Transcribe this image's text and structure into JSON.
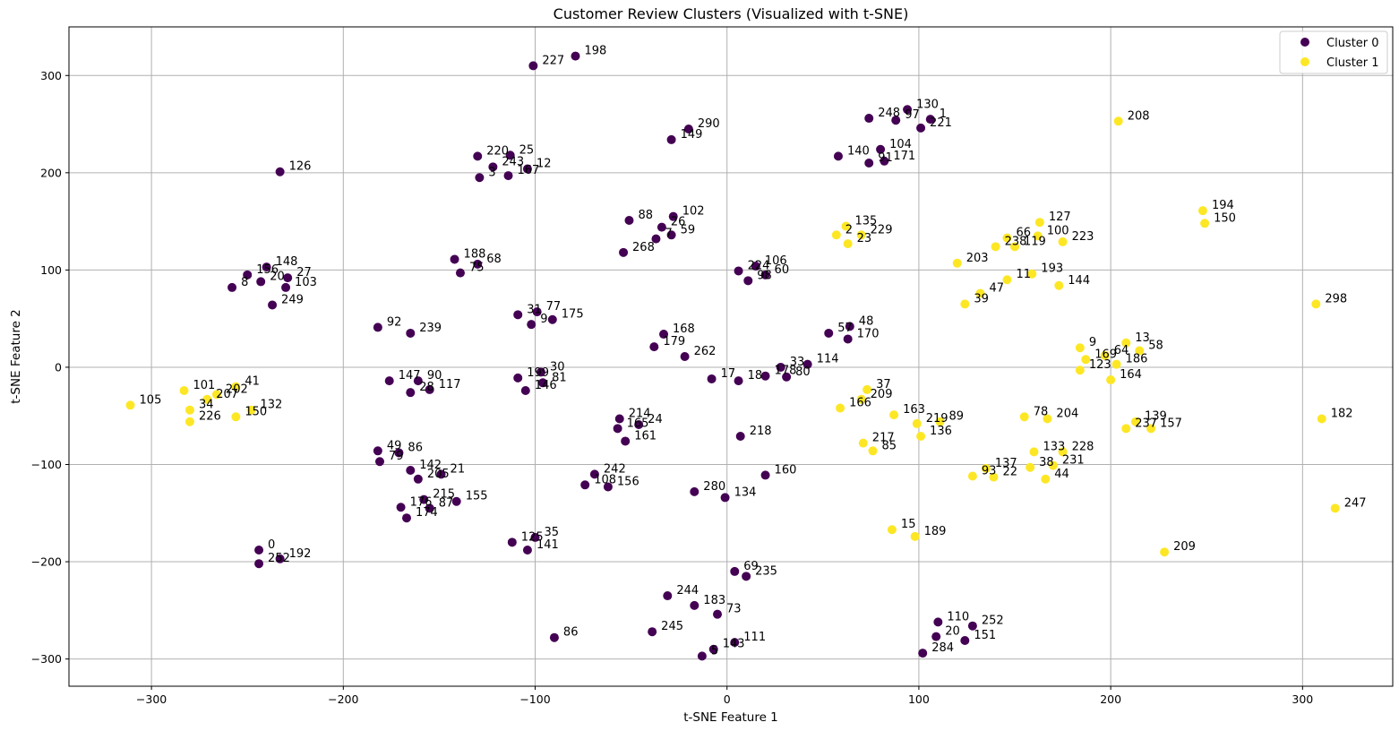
{
  "chart_data": {
    "type": "scatter",
    "title": "Customer Review Clusters (Visualized with t-SNE)",
    "xlabel": "t-SNE Feature 1",
    "ylabel": "t-SNE Feature 2",
    "xlim": [
      -343,
      347
    ],
    "ylim": [
      -328,
      350
    ],
    "xticks": [
      -300,
      -200,
      -100,
      0,
      100,
      200,
      300
    ],
    "yticks": [
      -300,
      -200,
      -100,
      0,
      100,
      200,
      300
    ],
    "grid": true,
    "legend_position": "top-right",
    "series": [
      {
        "name": "Cluster 0",
        "color": "#440154",
        "points": [
          {
            "x": -79,
            "y": 320,
            "label": "198"
          },
          {
            "x": -101,
            "y": 310,
            "label": "227"
          },
          {
            "x": 94,
            "y": 265,
            "label": "130"
          },
          {
            "x": 106,
            "y": 255,
            "label": "1"
          },
          {
            "x": 74,
            "y": 256,
            "label": "248"
          },
          {
            "x": 88,
            "y": 254,
            "label": "97"
          },
          {
            "x": 101,
            "y": 246,
            "label": "221"
          },
          {
            "x": -20,
            "y": 245,
            "label": "290"
          },
          {
            "x": -29,
            "y": 234,
            "label": "149"
          },
          {
            "x": 80,
            "y": 224,
            "label": "104"
          },
          {
            "x": 58,
            "y": 217,
            "label": "140"
          },
          {
            "x": 82,
            "y": 212,
            "label": "171"
          },
          {
            "x": 74,
            "y": 210,
            "label": "91"
          },
          {
            "x": -233,
            "y": 201,
            "label": "126"
          },
          {
            "x": -130,
            "y": 217,
            "label": "220"
          },
          {
            "x": -113,
            "y": 218,
            "label": "25"
          },
          {
            "x": -122,
            "y": 206,
            "label": "243"
          },
          {
            "x": -104,
            "y": 204,
            "label": "12"
          },
          {
            "x": -129,
            "y": 195,
            "label": "3"
          },
          {
            "x": -114,
            "y": 197,
            "label": "167"
          },
          {
            "x": -51,
            "y": 151,
            "label": "88"
          },
          {
            "x": -28,
            "y": 155,
            "label": "102"
          },
          {
            "x": -34,
            "y": 144,
            "label": "26"
          },
          {
            "x": -29,
            "y": 136,
            "label": "59"
          },
          {
            "x": -37,
            "y": 132,
            "label": "7"
          },
          {
            "x": -54,
            "y": 118,
            "label": "268"
          },
          {
            "x": -142,
            "y": 111,
            "label": "188"
          },
          {
            "x": -130,
            "y": 106,
            "label": "68"
          },
          {
            "x": -139,
            "y": 97,
            "label": "75"
          },
          {
            "x": 15,
            "y": 104,
            "label": "106"
          },
          {
            "x": 6,
            "y": 99,
            "label": "224"
          },
          {
            "x": 20,
            "y": 95,
            "label": "60"
          },
          {
            "x": 11,
            "y": 89,
            "label": "98"
          },
          {
            "x": -240,
            "y": 103,
            "label": "148"
          },
          {
            "x": -250,
            "y": 95,
            "label": "156"
          },
          {
            "x": -229,
            "y": 92,
            "label": "27"
          },
          {
            "x": -243,
            "y": 88,
            "label": "20"
          },
          {
            "x": -230,
            "y": 82,
            "label": "103"
          },
          {
            "x": -258,
            "y": 82,
            "label": "8"
          },
          {
            "x": -237,
            "y": 64,
            "label": "249"
          },
          {
            "x": -109,
            "y": 54,
            "label": "31"
          },
          {
            "x": -99,
            "y": 57,
            "label": "77"
          },
          {
            "x": -91,
            "y": 49,
            "label": "175"
          },
          {
            "x": -102,
            "y": 44,
            "label": "9"
          },
          {
            "x": 64,
            "y": 42,
            "label": "48"
          },
          {
            "x": 53,
            "y": 35,
            "label": "57"
          },
          {
            "x": 63,
            "y": 29,
            "label": "170"
          },
          {
            "x": -182,
            "y": 41,
            "label": "92"
          },
          {
            "x": -165,
            "y": 35,
            "label": "239"
          },
          {
            "x": -33,
            "y": 34,
            "label": "168"
          },
          {
            "x": -38,
            "y": 21,
            "label": "179"
          },
          {
            "x": -22,
            "y": 11,
            "label": "262"
          },
          {
            "x": 42,
            "y": 3,
            "label": "114"
          },
          {
            "x": 28,
            "y": 0,
            "label": "33"
          },
          {
            "x": -97,
            "y": -5,
            "label": "30"
          },
          {
            "x": -109,
            "y": -11,
            "label": "199"
          },
          {
            "x": -96,
            "y": -16,
            "label": "81"
          },
          {
            "x": -105,
            "y": -24,
            "label": "146"
          },
          {
            "x": -8,
            "y": -12,
            "label": "17"
          },
          {
            "x": 6,
            "y": -14,
            "label": "18"
          },
          {
            "x": 20,
            "y": -9,
            "label": "178"
          },
          {
            "x": 31,
            "y": -10,
            "label": "80"
          },
          {
            "x": -176,
            "y": -14,
            "label": "147"
          },
          {
            "x": -161,
            "y": -14,
            "label": "90"
          },
          {
            "x": -155,
            "y": -23,
            "label": "117"
          },
          {
            "x": -165,
            "y": -26,
            "label": "28"
          },
          {
            "x": -56,
            "y": -53,
            "label": "214"
          },
          {
            "x": -46,
            "y": -59,
            "label": "24"
          },
          {
            "x": -57,
            "y": -63,
            "label": "165"
          },
          {
            "x": -53,
            "y": -76,
            "label": "161"
          },
          {
            "x": 7,
            "y": -71,
            "label": "218"
          },
          {
            "x": -182,
            "y": -86,
            "label": "49"
          },
          {
            "x": -171,
            "y": -88,
            "label": "86"
          },
          {
            "x": -181,
            "y": -97,
            "label": "79"
          },
          {
            "x": -165,
            "y": -106,
            "label": "142"
          },
          {
            "x": -149,
            "y": -110,
            "label": "21"
          },
          {
            "x": -161,
            "y": -115,
            "label": "205"
          },
          {
            "x": -69,
            "y": -110,
            "label": "242"
          },
          {
            "x": -74,
            "y": -121,
            "label": "108"
          },
          {
            "x": -62,
            "y": -123,
            "label": "156"
          },
          {
            "x": -17,
            "y": -128,
            "label": "280"
          },
          {
            "x": -1,
            "y": -134,
            "label": "134"
          },
          {
            "x": 20,
            "y": -111,
            "label": "160"
          },
          {
            "x": -158,
            "y": -136,
            "label": "215"
          },
          {
            "x": -141,
            "y": -138,
            "label": "155"
          },
          {
            "x": -170,
            "y": -144,
            "label": "176"
          },
          {
            "x": -155,
            "y": -145,
            "label": "87"
          },
          {
            "x": -167,
            "y": -155,
            "label": "174"
          },
          {
            "x": -112,
            "y": -180,
            "label": "125"
          },
          {
            "x": -100,
            "y": -175,
            "label": "35"
          },
          {
            "x": -104,
            "y": -188,
            "label": "141"
          },
          {
            "x": -244,
            "y": -188,
            "label": "0"
          },
          {
            "x": -233,
            "y": -197,
            "label": "192"
          },
          {
            "x": -244,
            "y": -202,
            "label": "252"
          },
          {
            "x": 4,
            "y": -210,
            "label": "69"
          },
          {
            "x": 10,
            "y": -215,
            "label": "235"
          },
          {
            "x": -31,
            "y": -235,
            "label": "244"
          },
          {
            "x": -17,
            "y": -245,
            "label": "183"
          },
          {
            "x": -5,
            "y": -254,
            "label": "73"
          },
          {
            "x": -90,
            "y": -278,
            "label": "86"
          },
          {
            "x": -39,
            "y": -272,
            "label": "245"
          },
          {
            "x": 4,
            "y": -283,
            "label": "111"
          },
          {
            "x": -7,
            "y": -290,
            "label": "143"
          },
          {
            "x": -13,
            "y": -297,
            "label": "5"
          },
          {
            "x": 110,
            "y": -262,
            "label": "110"
          },
          {
            "x": 128,
            "y": -266,
            "label": "252"
          },
          {
            "x": 109,
            "y": -277,
            "label": "20"
          },
          {
            "x": 124,
            "y": -281,
            "label": "151"
          },
          {
            "x": 102,
            "y": -294,
            "label": "284"
          }
        ]
      },
      {
        "name": "Cluster 1",
        "color": "#fde725",
        "points": [
          {
            "x": 204,
            "y": 253,
            "label": "208"
          },
          {
            "x": 163,
            "y": 149,
            "label": "127"
          },
          {
            "x": 162,
            "y": 135,
            "label": "100"
          },
          {
            "x": 175,
            "y": 129,
            "label": "223"
          },
          {
            "x": 146,
            "y": 133,
            "label": "66"
          },
          {
            "x": 140,
            "y": 124,
            "label": "238"
          },
          {
            "x": 150,
            "y": 124,
            "label": "119"
          },
          {
            "x": 248,
            "y": 161,
            "label": "194"
          },
          {
            "x": 249,
            "y": 148,
            "label": "150"
          },
          {
            "x": 62,
            "y": 145,
            "label": "135"
          },
          {
            "x": 57,
            "y": 136,
            "label": "2"
          },
          {
            "x": 70,
            "y": 136,
            "label": "229"
          },
          {
            "x": 63,
            "y": 127,
            "label": "23"
          },
          {
            "x": 120,
            "y": 107,
            "label": "203"
          },
          {
            "x": 159,
            "y": 96,
            "label": "193"
          },
          {
            "x": 146,
            "y": 90,
            "label": "11"
          },
          {
            "x": 173,
            "y": 84,
            "label": "144"
          },
          {
            "x": 132,
            "y": 76,
            "label": "47"
          },
          {
            "x": 124,
            "y": 65,
            "label": "39"
          },
          {
            "x": 307,
            "y": 65,
            "label": "298"
          },
          {
            "x": 208,
            "y": 25,
            "label": "13"
          },
          {
            "x": 215,
            "y": 17,
            "label": "58"
          },
          {
            "x": 184,
            "y": 20,
            "label": "9"
          },
          {
            "x": 197,
            "y": 12,
            "label": "64"
          },
          {
            "x": 187,
            "y": 8,
            "label": "169"
          },
          {
            "x": 203,
            "y": 3,
            "label": "186"
          },
          {
            "x": 184,
            "y": -3,
            "label": "123"
          },
          {
            "x": 200,
            "y": -13,
            "label": "164"
          },
          {
            "x": 73,
            "y": -23,
            "label": "37"
          },
          {
            "x": 70,
            "y": -33,
            "label": "209"
          },
          {
            "x": 59,
            "y": -42,
            "label": "166"
          },
          {
            "x": 87,
            "y": -49,
            "label": "163"
          },
          {
            "x": 99,
            "y": -58,
            "label": "219"
          },
          {
            "x": 111,
            "y": -56,
            "label": "89"
          },
          {
            "x": 101,
            "y": -71,
            "label": "136"
          },
          {
            "x": 71,
            "y": -78,
            "label": "217"
          },
          {
            "x": 76,
            "y": -86,
            "label": "85"
          },
          {
            "x": 155,
            "y": -51,
            "label": "78"
          },
          {
            "x": 167,
            "y": -53,
            "label": "204"
          },
          {
            "x": 213,
            "y": -56,
            "label": "139"
          },
          {
            "x": 208,
            "y": -63,
            "label": "237"
          },
          {
            "x": 221,
            "y": -63,
            "label": "157"
          },
          {
            "x": 310,
            "y": -53,
            "label": "182"
          },
          {
            "x": 160,
            "y": -87,
            "label": "133"
          },
          {
            "x": 175,
            "y": -87,
            "label": "228"
          },
          {
            "x": 158,
            "y": -103,
            "label": "38"
          },
          {
            "x": 170,
            "y": -101,
            "label": "231"
          },
          {
            "x": 135,
            "y": -104,
            "label": "137"
          },
          {
            "x": 128,
            "y": -112,
            "label": "93"
          },
          {
            "x": 139,
            "y": -113,
            "label": "22"
          },
          {
            "x": 166,
            "y": -115,
            "label": "44"
          },
          {
            "x": 317,
            "y": -145,
            "label": "247"
          },
          {
            "x": 86,
            "y": -167,
            "label": "15"
          },
          {
            "x": 98,
            "y": -174,
            "label": "189"
          },
          {
            "x": 228,
            "y": -190,
            "label": "209"
          },
          {
            "x": -311,
            "y": -39,
            "label": "105"
          },
          {
            "x": -283,
            "y": -24,
            "label": "101"
          },
          {
            "x": -256,
            "y": -20,
            "label": "41"
          },
          {
            "x": -266,
            "y": -28,
            "label": "202"
          },
          {
            "x": -271,
            "y": -33,
            "label": "207"
          },
          {
            "x": -280,
            "y": -44,
            "label": "34"
          },
          {
            "x": -248,
            "y": -44,
            "label": "132"
          },
          {
            "x": -256,
            "y": -51,
            "label": "150"
          },
          {
            "x": -280,
            "y": -56,
            "label": "226"
          }
        ]
      }
    ]
  }
}
